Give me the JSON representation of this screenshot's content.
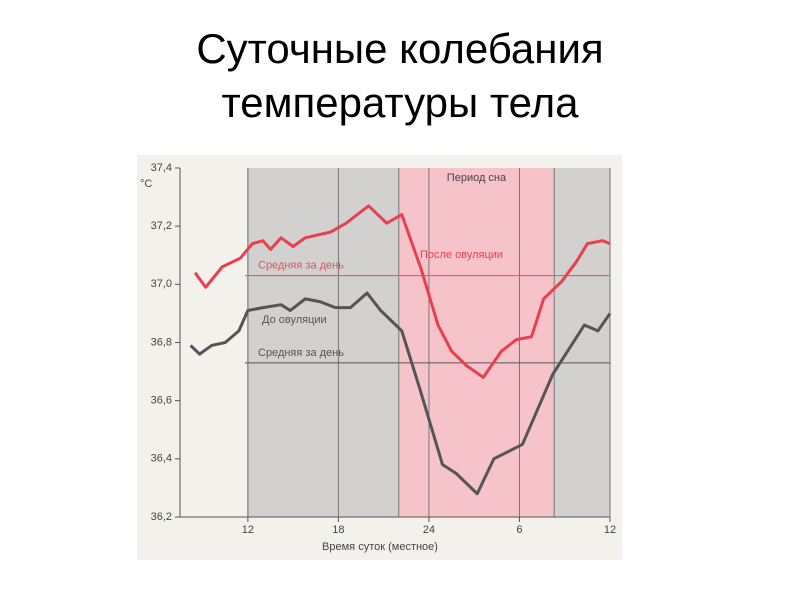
{
  "chart_data": {
    "type": "line",
    "title": "Суточные колебания температуры тела",
    "x_label": "Время суток (местное)",
    "y_unit": "°C",
    "xlim": [
      7.5,
      36
    ],
    "xticks": [
      12,
      18,
      24,
      {
        "value": 30,
        "label": "6"
      },
      {
        "value": 36,
        "label": "12"
      }
    ],
    "ylim": [
      36.2,
      37.4
    ],
    "yticks": [
      {
        "value": 36.2,
        "label": "36,2"
      },
      {
        "value": 36.4,
        "label": "36,4"
      },
      {
        "value": 36.6,
        "label": "36,6"
      },
      {
        "value": 36.8,
        "label": "36,8"
      },
      {
        "value": 37.0,
        "label": "37,0"
      },
      {
        "value": 37.2,
        "label": "37,2"
      },
      {
        "value": 37.4,
        "label": "37,4"
      }
    ],
    "grid": true,
    "regions": [
      {
        "from": 12,
        "to": 22,
        "color": "#d3d1cf"
      },
      {
        "from": 22,
        "to": 32.3,
        "color": "#f6c3ca",
        "label": "Период сна"
      },
      {
        "from": 32.3,
        "to": 36,
        "color": "#d3d1cf"
      }
    ],
    "reference_lines": [
      {
        "value": 37.03,
        "label": "Средняя за день",
        "color": "#e0505e"
      },
      {
        "value": 36.73,
        "label": "Средняя за день",
        "color": "#555555"
      }
    ],
    "series": [
      {
        "name": "После овуляции",
        "color": "#e8404f",
        "x": [
          8.5,
          9.2,
          10.3,
          11.5,
          12.3,
          13.0,
          13.5,
          14.2,
          15.0,
          15.8,
          17.5,
          18.5,
          20.0,
          21.2,
          22.2,
          23.5,
          24.6,
          25.5,
          26.5,
          27.6,
          28.8,
          29.8,
          30.8,
          31.6,
          32.8,
          33.8,
          34.5,
          35.5,
          36
        ],
        "values": [
          37.04,
          36.99,
          37.06,
          37.09,
          37.14,
          37.15,
          37.12,
          37.16,
          37.13,
          37.16,
          37.18,
          37.21,
          37.27,
          37.21,
          37.24,
          37.05,
          36.86,
          36.77,
          36.72,
          36.68,
          36.77,
          36.81,
          36.82,
          36.95,
          37.01,
          37.08,
          37.14,
          37.15,
          37.14
        ]
      },
      {
        "name": "До овуляции",
        "color": "#555555",
        "x": [
          8.2,
          8.8,
          9.6,
          10.5,
          11.4,
          12.0,
          13.0,
          14.2,
          14.8,
          15.8,
          16.8,
          17.8,
          18.8,
          19.9,
          20.8,
          22.2,
          23.4,
          24.9,
          25.8,
          27.2,
          28.3,
          30.2,
          32.2,
          34.3,
          35.2,
          36.0
        ],
        "values": [
          36.79,
          36.76,
          36.79,
          36.8,
          36.84,
          36.91,
          36.92,
          36.93,
          36.91,
          36.95,
          36.94,
          36.92,
          36.92,
          36.97,
          36.91,
          36.84,
          36.64,
          36.38,
          36.35,
          36.28,
          36.4,
          36.45,
          36.69,
          36.86,
          36.84,
          36.9
        ]
      }
    ]
  }
}
